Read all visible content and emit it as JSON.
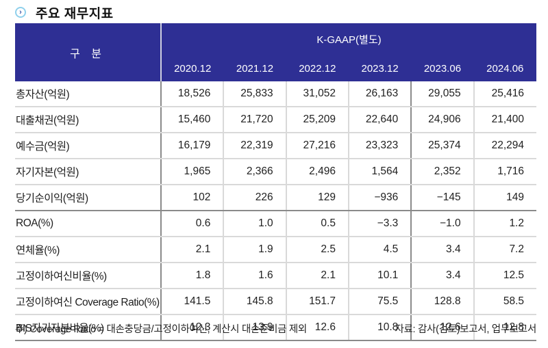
{
  "title": "주요 재무지표",
  "title_icon": "chevron-right-circle-icon",
  "table": {
    "header_label": "구 분",
    "header_group": "K-GAAP(별도)",
    "columns": [
      "2020.12",
      "2021.12",
      "2022.12",
      "2023.12",
      "2023.06",
      "2024.06"
    ],
    "rows": [
      {
        "label": "총자산(억원)",
        "values": [
          "18,526",
          "25,833",
          "31,052",
          "26,163",
          "29,055",
          "25,416"
        ]
      },
      {
        "label": "대출채권(억원)",
        "values": [
          "15,460",
          "21,720",
          "25,209",
          "22,640",
          "24,906",
          "21,400"
        ]
      },
      {
        "label": "예수금(억원)",
        "values": [
          "16,179",
          "22,319",
          "27,216",
          "23,323",
          "25,374",
          "22,294"
        ]
      },
      {
        "label": "자기자본(억원)",
        "values": [
          "1,965",
          "2,366",
          "2,496",
          "1,564",
          "2,352",
          "1,716"
        ]
      },
      {
        "label": "당기순이익(억원)",
        "values": [
          "102",
          "226",
          "129",
          "−936",
          "−145",
          "149"
        ]
      },
      {
        "label": "ROA(%)",
        "values": [
          "0.6",
          "1.0",
          "0.5",
          "−3.3",
          "−1.0",
          "1.2"
        ]
      },
      {
        "label": "연체율(%)",
        "values": [
          "2.1",
          "1.9",
          "2.5",
          "4.5",
          "3.4",
          "7.2"
        ]
      },
      {
        "label": "고정이하여신비율(%)",
        "values": [
          "1.8",
          "1.6",
          "2.1",
          "10.1",
          "3.4",
          "12.5"
        ]
      },
      {
        "label": "고정이하여신 Coverage Ratio(%)",
        "values": [
          "141.5",
          "145.8",
          "151.7",
          "75.5",
          "128.8",
          "58.5"
        ]
      },
      {
        "label": "BIS자기자본비율(%)",
        "values": [
          "12.3",
          "13.9",
          "12.6",
          "10.8",
          "12.6",
          "12.8"
        ]
      }
    ]
  },
  "footnote": "주) Coverage Ratio = 대손충당금/고정이하여신, 계산시 대손준비금 제외",
  "source": "자료: 감사(검토)보고서, 업무보고서",
  "colors": {
    "header_bg": "#2e2f94",
    "header_text": "#ffffff",
    "icon_ring": "#8fd0ec",
    "icon_glyph": "#3d59a8"
  }
}
